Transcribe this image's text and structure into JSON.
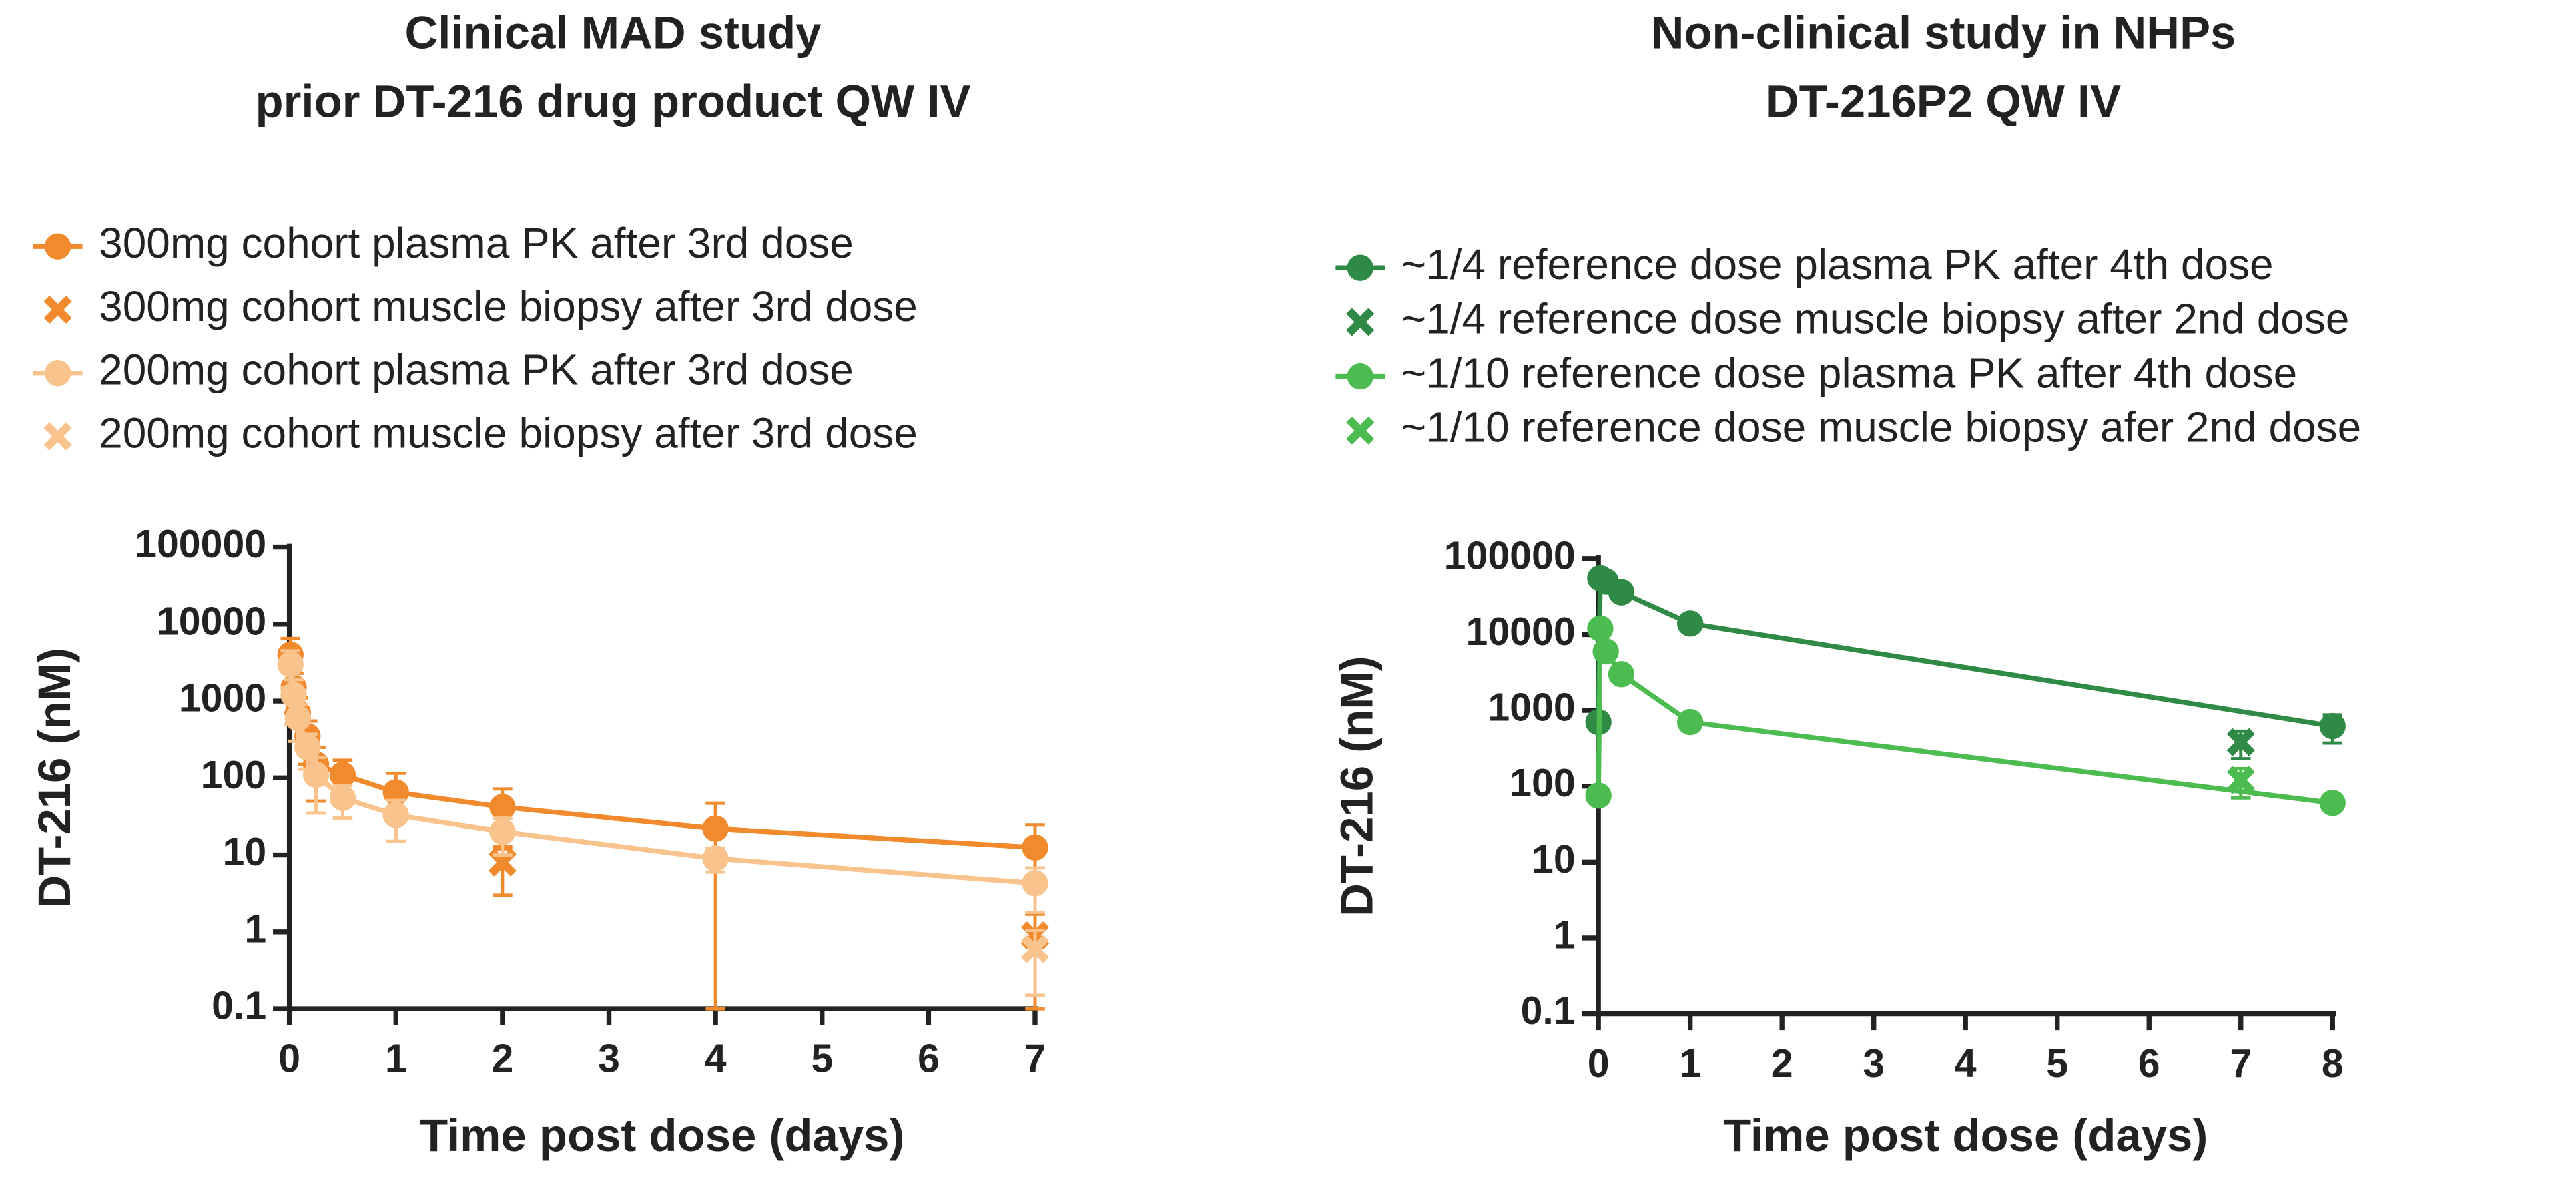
{
  "chart_data": [
    {
      "type": "line",
      "title": [
        "Clinical MAD study",
        "prior DT-216 drug product QW IV"
      ],
      "x_label": "Time post dose (days)",
      "y_label": "DT-216 (nM)",
      "xlim": [
        0,
        7
      ],
      "xticks": [
        0,
        1,
        2,
        3,
        4,
        5,
        6,
        7
      ],
      "ylim": [
        0.1,
        100000
      ],
      "yticks": [
        0.1,
        1,
        10,
        100,
        1000,
        10000,
        100000
      ],
      "log_y": true,
      "series": [
        {
          "name": "300mg cohort plasma PK after 3rd dose",
          "color": "#f08a2c",
          "marker": "circle",
          "line": true,
          "x": [
            0.01,
            0.04,
            0.08,
            0.17,
            0.25,
            0.5,
            1,
            2,
            4,
            7
          ],
          "values": [
            4000,
            1500,
            700,
            350,
            150,
            110,
            65,
            42,
            22,
            12.5
          ],
          "yerr": [
            2500,
            800,
            400,
            200,
            100,
            60,
            50,
            30,
            25,
            12
          ]
        },
        {
          "name": "300mg cohort muscle biopsy after 3rd dose",
          "color": "#f08a2c",
          "marker": "x",
          "line": false,
          "x": [
            2,
            7
          ],
          "values": [
            8,
            0.9
          ],
          "yerr": [
            5,
            0.8
          ]
        },
        {
          "name": "200mg cohort plasma PK after 3rd dose",
          "color": "#f8c38c",
          "marker": "circle",
          "line": true,
          "x": [
            0.01,
            0.04,
            0.08,
            0.17,
            0.25,
            0.5,
            1,
            2,
            4,
            7
          ],
          "values": [
            3000,
            1200,
            600,
            250,
            110,
            55,
            33,
            20,
            9,
            4.3
          ],
          "yerr": [
            1500,
            700,
            300,
            120,
            75,
            25,
            18,
            10,
            3,
            2.5
          ]
        },
        {
          "name": "200mg cohort muscle biopsy after 3rd dose",
          "color": "#f8c38c",
          "marker": "x",
          "line": false,
          "x": [
            7
          ],
          "values": [
            0.6
          ],
          "yerr": [
            0.45
          ]
        }
      ]
    },
    {
      "type": "line",
      "title": [
        "Non-clinical study in NHPs",
        "DT-216P2 QW IV"
      ],
      "x_label": "Time post dose (days)",
      "y_label": "DT-216 (nM)",
      "xlim": [
        0,
        8
      ],
      "xticks": [
        0,
        1,
        2,
        3,
        4,
        5,
        6,
        7,
        8
      ],
      "ylim": [
        0.1,
        100000
      ],
      "yticks": [
        0.1,
        1,
        10,
        100,
        1000,
        10000,
        100000
      ],
      "log_y": true,
      "series": [
        {
          "name": "~1/4 reference dose plasma PK after 4th dose",
          "color": "#2e8a45",
          "marker": "circle",
          "line": true,
          "x": [
            0,
            0.02,
            0.08,
            0.25,
            1,
            8
          ],
          "values": [
            700,
            55000,
            50000,
            36000,
            14000,
            620
          ],
          "yerr": [
            100,
            8000,
            6000,
            5000,
            2000,
            250
          ]
        },
        {
          "name": "~1/4 reference dose muscle biopsy after 2nd dose",
          "color": "#2e8a45",
          "marker": "x",
          "line": false,
          "x": [
            7
          ],
          "values": [
            380
          ],
          "yerr": [
            150
          ]
        },
        {
          "name": "~1/10 reference dose plasma PK after 4th dose",
          "color": "#4cbb50",
          "marker": "circle",
          "line": true,
          "x": [
            0,
            0.02,
            0.08,
            0.25,
            1,
            8
          ],
          "values": [
            75,
            12000,
            6000,
            3000,
            700,
            60
          ],
          "yerr": [
            10,
            2000,
            1000,
            500,
            100,
            8
          ]
        },
        {
          "name": "~1/10 reference dose muscle biopsy afer 2nd dose",
          "color": "#4cbb50",
          "marker": "x",
          "line": false,
          "x": [
            7
          ],
          "values": [
            120
          ],
          "yerr": [
            50
          ]
        }
      ]
    }
  ]
}
